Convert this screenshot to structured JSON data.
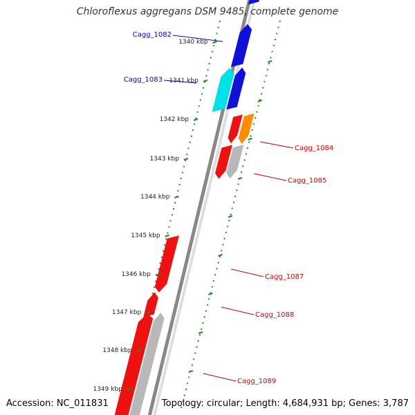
{
  "title": "Chloroflexus aggregans DSM 9485, complete genome",
  "footer": {
    "accession": "Accession: NC_011831",
    "summary": "Topology: circular; Length: 4,684,931 bp; Genes: 3,787"
  },
  "colors": {
    "forward_gene": "#1010d8",
    "forward_gene_alt": "#00e0e8",
    "reverse_gene": "#ee1111",
    "reverse_gene_alt": "#ff8c00",
    "pseudo_gene": "#b8b8b8",
    "backbone": "#888888",
    "tick": "#228822",
    "label_forward": "#0000cc",
    "label_reverse": "#cc0000"
  },
  "scale": {
    "ticks": [
      {
        "label": "1340 kbp"
      },
      {
        "label": "1341 kbp"
      },
      {
        "label": "1342 kbp"
      },
      {
        "label": "1343 kbp"
      },
      {
        "label": "1344 kbp"
      },
      {
        "label": "1345 kbp"
      },
      {
        "label": "1346 kbp"
      },
      {
        "label": "1347 kbp"
      },
      {
        "label": "1348 kbp"
      },
      {
        "label": "1349 kbp"
      }
    ]
  },
  "genes": [
    {
      "label": "Cagg_1082",
      "strand": "forward"
    },
    {
      "label": "Cagg_1083",
      "strand": "forward"
    },
    {
      "label": "Cagg_1084",
      "strand": "reverse"
    },
    {
      "label": "Cagg_1085",
      "strand": "reverse"
    },
    {
      "label": "Cagg_1087",
      "strand": "reverse"
    },
    {
      "label": "Cagg_1088",
      "strand": "reverse"
    },
    {
      "label": "Cagg_1089",
      "strand": "reverse"
    }
  ]
}
